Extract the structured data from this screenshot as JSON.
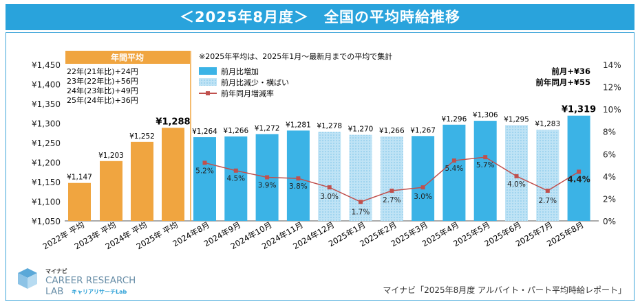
{
  "title": "＜2025年8月度＞　全国の平均時給推移",
  "note": "※2025年平均は、2025年1月～最新月までの平均で集計",
  "annual_box": {
    "header": "年間平均",
    "lines": [
      "22年(21年比)+24円",
      "23年(22年比)+56円",
      "24年(23年比)+49円",
      "25年(24年比)+36円"
    ]
  },
  "legend": {
    "increase": "前月比増加",
    "decrease": "前月比減少・横ばい",
    "yoy": "前年同月増減率"
  },
  "summary": [
    "前月+¥36",
    "前年同月+¥55"
  ],
  "source": "マイナビ「2025年8月度 アルバイト・パート平均時給レポート」",
  "logo": {
    "top": "マイナビ",
    "line1": "CAREER RESEARCH",
    "line2": "LAB",
    "sub": "キャリアリサーチLab"
  },
  "colors": {
    "annual": "#f0a540",
    "increase": "#3bb3e6",
    "decrease": "#bfe3f5",
    "line": "#c0504d",
    "banner": "#29a3dc"
  },
  "chart_data": {
    "type": "bar",
    "left_axis": {
      "ticks": [
        "¥1,050",
        "¥1,100",
        "¥1,150",
        "¥1,200",
        "¥1,250",
        "¥1,300",
        "¥1,350",
        "¥1,400",
        "¥1,450"
      ],
      "min": 1050,
      "max": 1450
    },
    "right_axis": {
      "ticks": [
        "0%",
        "2%",
        "4%",
        "6%",
        "8%",
        "10%",
        "12%",
        "14%"
      ],
      "min": 0,
      "max": 14
    },
    "annual": {
      "categories": [
        "2022年 平均",
        "2023年 平均",
        "2024年 平均",
        "2025年 平均"
      ],
      "values": [
        1147,
        1203,
        1252,
        1288
      ],
      "labels": [
        "¥1,147",
        "¥1,203",
        "¥1,252",
        "¥1,288"
      ]
    },
    "monthly": {
      "categories": [
        "2024年8月",
        "2024年9月",
        "2024年10月",
        "2024年11月",
        "2024年12月",
        "2025年1月",
        "2025年2月",
        "2025年3月",
        "2025年4月",
        "2025年5月",
        "2025年6月",
        "2025年7月",
        "2025年8月"
      ],
      "values": [
        1264,
        1266,
        1272,
        1281,
        1278,
        1270,
        1266,
        1267,
        1296,
        1306,
        1295,
        1283,
        1319
      ],
      "labels": [
        "¥1,264",
        "¥1,266",
        "¥1,272",
        "¥1,281",
        "¥1,278",
        "¥1,270",
        "¥1,266",
        "¥1,267",
        "¥1,296",
        "¥1,306",
        "¥1,295",
        "¥1,283",
        "¥1,319"
      ],
      "change": [
        "increase",
        "increase",
        "increase",
        "increase",
        "decrease",
        "decrease",
        "decrease",
        "increase",
        "increase",
        "increase",
        "decrease",
        "decrease",
        "increase"
      ],
      "yoy": [
        5.2,
        4.5,
        3.9,
        3.8,
        3.0,
        1.7,
        2.7,
        3.0,
        5.4,
        5.7,
        4.0,
        2.7,
        4.4
      ],
      "yoy_labels": [
        "5.2%",
        "4.5%",
        "3.9%",
        "3.8%",
        "3.0%",
        "1.7%",
        "2.7%",
        "3.0%",
        "5.4%",
        "5.7%",
        "4.0%",
        "2.7%",
        "4.4%"
      ]
    }
  }
}
